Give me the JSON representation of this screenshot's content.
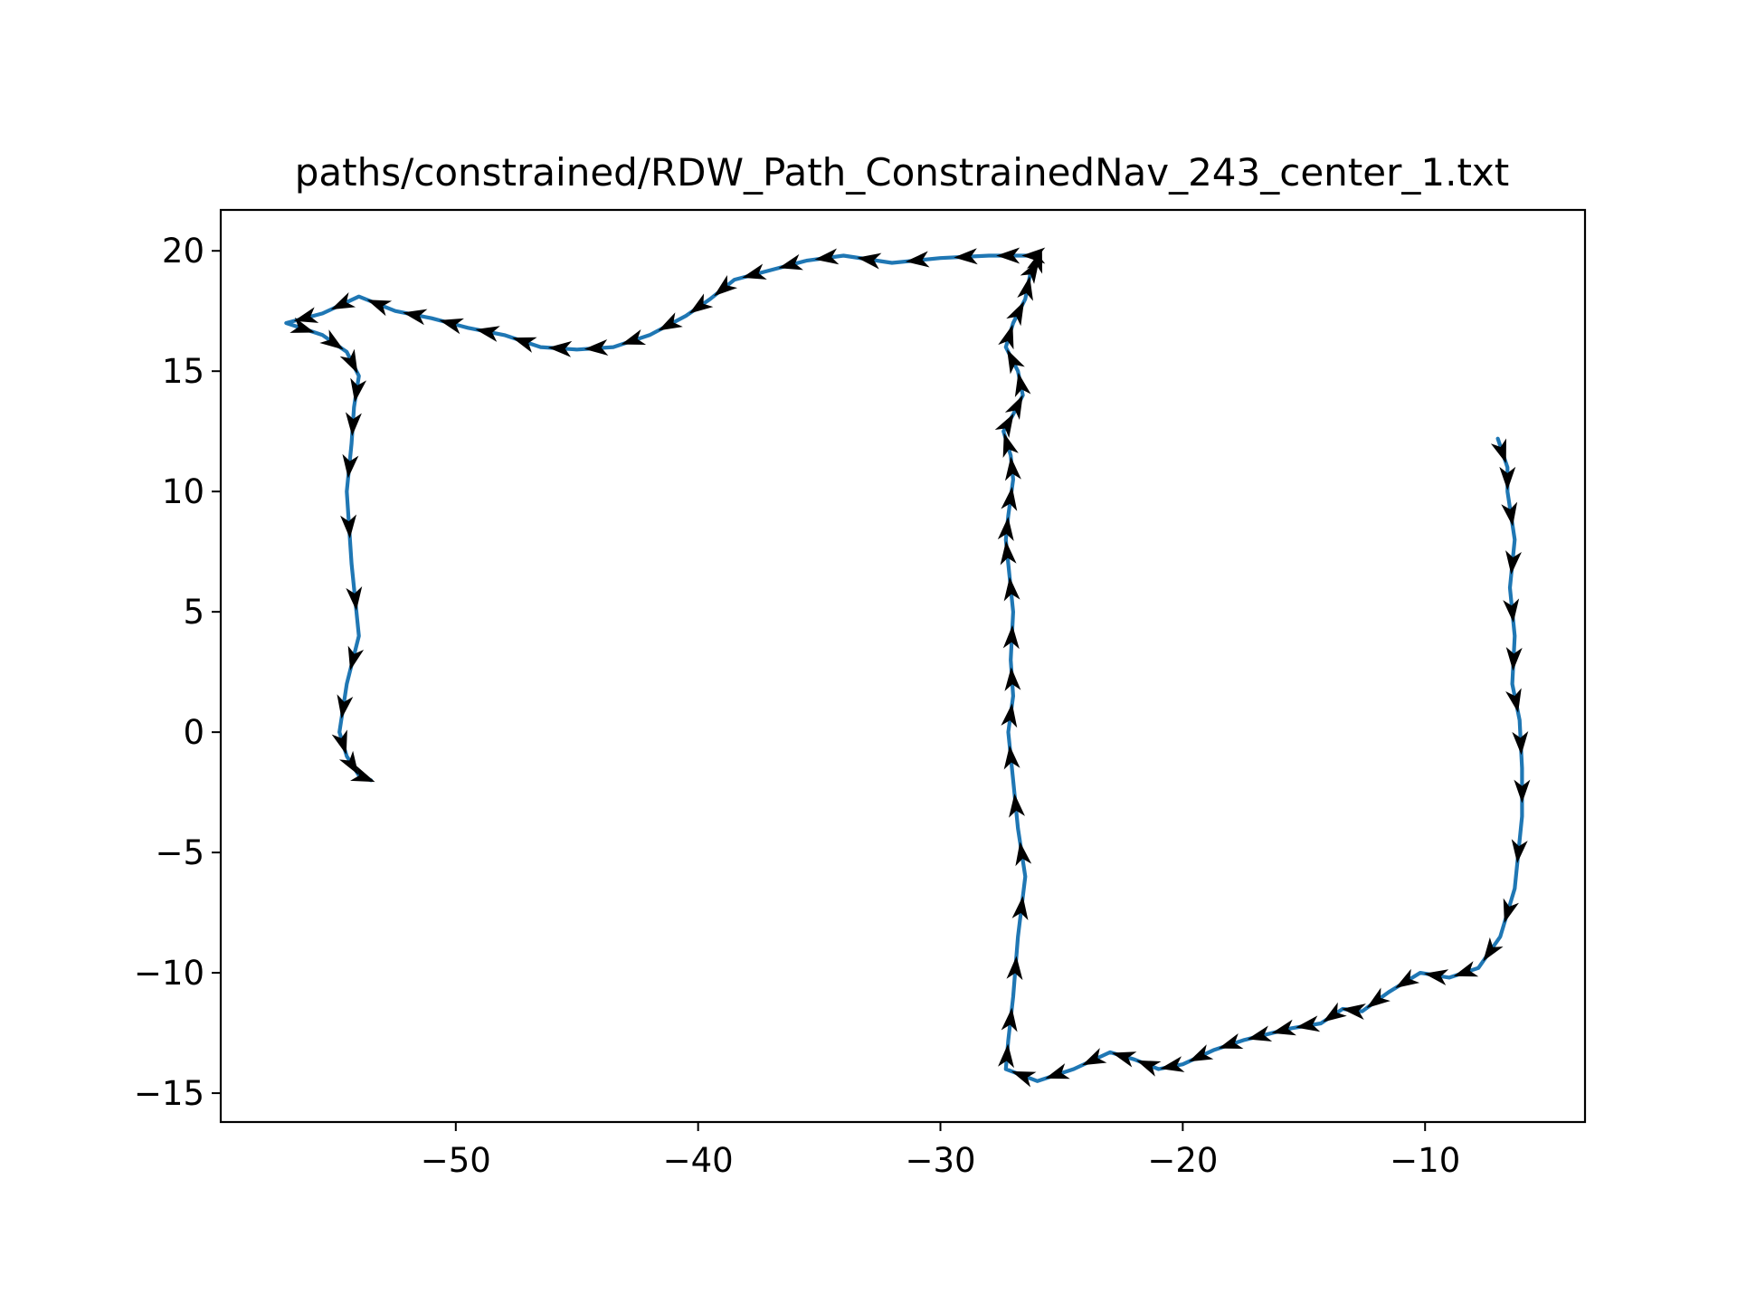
{
  "chart_data": {
    "type": "line",
    "title": "paths/constrained/RDW_Path_ConstrainedNav_243_center_1.txt",
    "xlabel": "",
    "ylabel": "",
    "xlim": [
      -59.7,
      -3.4
    ],
    "ylim": [
      -16.2,
      21.7
    ],
    "xticks": [
      -50,
      -40,
      -30,
      -20,
      -10
    ],
    "yticks": [
      -15,
      -10,
      -5,
      0,
      5,
      10,
      15,
      20
    ],
    "xtick_labels": [
      "−50",
      "−40",
      "−30",
      "−20",
      "−10"
    ],
    "ytick_labels": [
      "−15",
      "−10",
      "−5",
      "0",
      "5",
      "10",
      "15",
      "20"
    ],
    "grid": false,
    "legend": "none",
    "line_color": "#1f77b4",
    "arrow_color": "#000000",
    "series": [
      {
        "x": [
          -7.0,
          -6.6,
          -6.6,
          -6.3,
          -6.5,
          -6.3,
          -6.4,
          -6.1,
          -6.0,
          -6.0,
          -6.3,
          -6.9,
          -7.8,
          -9.0,
          -10.2,
          -11.5,
          -12.6,
          -13.4,
          -14.3,
          -15.5,
          -16.3,
          -17.5,
          -18.7,
          -20.0,
          -21.0,
          -22.0,
          -23.0,
          -24.5,
          -26.0,
          -27.3,
          -27.2,
          -27.0,
          -26.8,
          -26.5,
          -26.8,
          -27.0,
          -27.2,
          -27.0,
          -27.1,
          -27.0,
          -27.2,
          -27.3,
          -27.2,
          -27.0,
          -27.1,
          -27.4,
          -27.0,
          -26.6,
          -26.8,
          -27.3,
          -27.0,
          -26.5,
          -26.3,
          -26.0,
          -25.9,
          -26.5,
          -28.0,
          -30.0,
          -32.0,
          -34.0,
          -35.5,
          -37.0,
          -38.5,
          -39.5,
          -40.5,
          -42.0,
          -43.5,
          -45.0,
          -46.5,
          -48.0,
          -49.5,
          -51.0,
          -52.5,
          -54.0,
          -55.5,
          -57.0,
          -55.5,
          -54.5,
          -54.0,
          -54.2,
          -54.3,
          -54.5,
          -54.3,
          -54.0,
          -54.5,
          -54.8,
          -54.5,
          -54.0,
          -53.5
        ],
        "y": [
          12.2,
          11.0,
          10.0,
          8.0,
          6.0,
          4.0,
          2.0,
          0.5,
          -1.5,
          -3.5,
          -6.5,
          -8.5,
          -9.8,
          -10.2,
          -10.0,
          -10.8,
          -11.6,
          -11.5,
          -12.1,
          -12.3,
          -12.5,
          -12.8,
          -13.2,
          -13.8,
          -14.0,
          -13.6,
          -13.3,
          -14.0,
          -14.5,
          -14.0,
          -12.8,
          -11.0,
          -8.5,
          -6.0,
          -4.0,
          -2.0,
          0.0,
          1.5,
          3.0,
          5.0,
          7.0,
          8.0,
          9.0,
          10.5,
          11.5,
          12.5,
          13.2,
          14.0,
          15.0,
          16.0,
          17.0,
          18.0,
          19.0,
          19.5,
          19.8,
          19.8,
          19.8,
          19.7,
          19.5,
          19.8,
          19.6,
          19.2,
          18.8,
          18.0,
          17.3,
          16.5,
          16.0,
          15.9,
          16.0,
          16.5,
          16.8,
          17.2,
          17.5,
          18.1,
          17.4,
          17.0,
          16.5,
          15.8,
          14.8,
          13.5,
          12.0,
          10.0,
          7.0,
          4.0,
          2.0,
          0.0,
          -1.0,
          -1.8,
          -2.0
        ]
      }
    ]
  }
}
